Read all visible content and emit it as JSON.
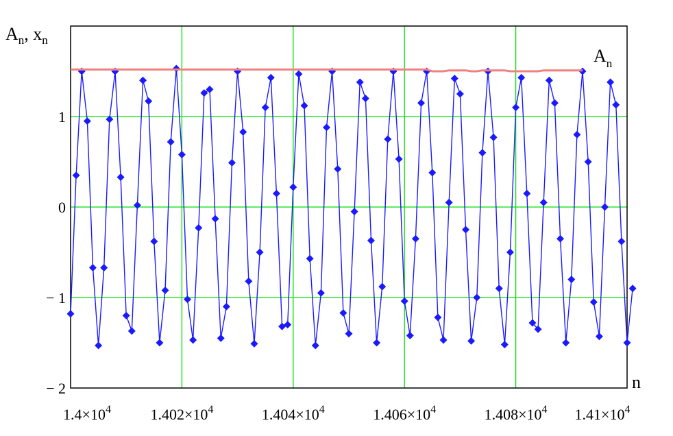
{
  "chart_data": {
    "type": "line",
    "title": "",
    "ylabel": {
      "main": "A",
      "sub": "n",
      "sep": ", ",
      "main2": "x",
      "sub2": "n"
    },
    "xlabel": "n",
    "xlim": [
      14000,
      14100
    ],
    "ylim": [
      -2,
      2.0
    ],
    "grid": true,
    "x_ticks": [
      {
        "mant": "1.4",
        "exp": "4",
        "value": 14000
      },
      {
        "mant": "1.402",
        "exp": "4",
        "value": 14020
      },
      {
        "mant": "1.404",
        "exp": "4",
        "value": 14040
      },
      {
        "mant": "1.406",
        "exp": "4",
        "value": 14060
      },
      {
        "mant": "1.408",
        "exp": "4",
        "value": 14080
      },
      {
        "mant": "1.41",
        "exp": "4",
        "value": 14100
      }
    ],
    "y_ticks": [
      {
        "label": "1",
        "value": 1
      },
      {
        "label": "0",
        "value": 0
      },
      {
        "label": "− 1",
        "value": -1
      },
      {
        "label": "− 2",
        "value": -2
      }
    ],
    "series": [
      {
        "label_main": "x",
        "color": "#1a1aff",
        "marker": "diamond",
        "x_start": 14000,
        "x_step": 1,
        "values": [
          -1.18,
          0.35,
          1.5,
          0.95,
          -0.67,
          -1.53,
          -0.67,
          0.97,
          1.5,
          0.33,
          -1.2,
          -1.37,
          0.02,
          1.4,
          1.17,
          -0.38,
          -1.5,
          -0.92,
          0.72,
          1.53,
          0.58,
          -1.02,
          -1.47,
          -0.23,
          1.26,
          1.3,
          -0.13,
          -1.45,
          -1.1,
          0.49,
          1.5,
          0.83,
          -0.82,
          -1.51,
          -0.5,
          1.1,
          1.43,
          0.15,
          -1.32,
          -1.3,
          0.22,
          1.47,
          1.12,
          -0.57,
          -1.53,
          -0.95,
          0.88,
          1.5,
          0.42,
          -1.17,
          -1.4,
          -0.05,
          1.38,
          1.2,
          -0.37,
          -1.5,
          -0.88,
          0.75,
          1.5,
          0.53,
          -1.04,
          -1.42,
          -0.35,
          1.15,
          1.5,
          0.38,
          -1.22,
          -1.47,
          0.05,
          1.42,
          1.25,
          -0.25,
          -1.48,
          -1.0,
          0.6,
          1.5,
          0.77,
          -0.9,
          -1.52,
          -0.5,
          1.1,
          1.43,
          0.15,
          -1.28,
          -1.35,
          0.05,
          1.4,
          1.15,
          -0.35,
          -1.5,
          -0.8,
          0.8,
          1.5,
          0.5,
          -1.05,
          -1.43,
          0.0,
          1.38,
          1.13,
          -0.38,
          -1.5,
          -0.9
        ]
      },
      {
        "name": "A",
        "name_sub": "n",
        "color": "#f08080",
        "x_start": 14000,
        "x_step": 1,
        "values": [
          1.52,
          1.52,
          1.52,
          1.52,
          1.52,
          1.52,
          1.52,
          1.52,
          1.52,
          1.52,
          1.52,
          1.52,
          1.52,
          1.52,
          1.52,
          1.52,
          1.52,
          1.52,
          1.52,
          1.52,
          1.52,
          1.52,
          1.52,
          1.52,
          1.52,
          1.52,
          1.52,
          1.52,
          1.52,
          1.52,
          1.52,
          1.52,
          1.52,
          1.52,
          1.52,
          1.52,
          1.52,
          1.52,
          1.52,
          1.52,
          1.52,
          1.52,
          1.52,
          1.52,
          1.52,
          1.52,
          1.52,
          1.52,
          1.52,
          1.52,
          1.52,
          1.52,
          1.52,
          1.52,
          1.52,
          1.52,
          1.52,
          1.52,
          1.52,
          1.52,
          1.52,
          1.52,
          1.52,
          1.52,
          1.52,
          1.5,
          1.5,
          1.5,
          1.51,
          1.51,
          1.51,
          1.51,
          1.5,
          1.5,
          1.51,
          1.51,
          1.51,
          1.51,
          1.51,
          1.5,
          1.5,
          1.5,
          1.5,
          1.5,
          1.5,
          1.51,
          1.51,
          1.51,
          1.51,
          1.51,
          1.51,
          1.51,
          1.51
        ]
      }
    ]
  }
}
